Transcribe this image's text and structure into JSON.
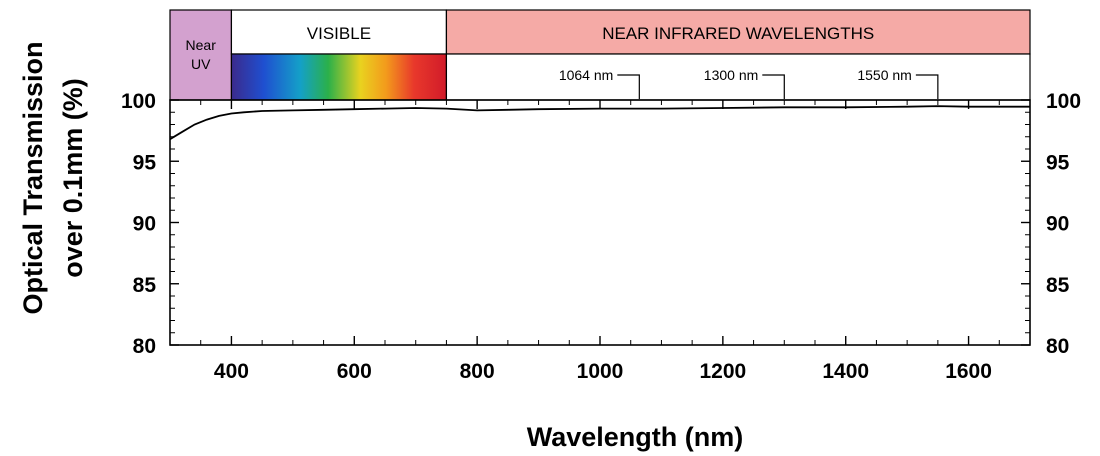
{
  "chart_data": {
    "type": "line",
    "xlabel": "Wavelength (nm)",
    "ylabel_line1": "Optical Transmission",
    "ylabel_line2": "over 0.1mm (%)",
    "xlim": [
      300,
      1700
    ],
    "ylim": [
      80,
      100
    ],
    "x_ticks": [
      400,
      600,
      800,
      1000,
      1200,
      1400,
      1600
    ],
    "y_ticks": [
      80,
      85,
      90,
      95,
      100
    ],
    "right_axis_ticks": [
      80,
      85,
      90,
      95,
      100
    ],
    "grid": false,
    "series": [
      {
        "x": [
          300,
          320,
          340,
          360,
          380,
          400,
          420,
          450,
          500,
          550,
          600,
          650,
          700,
          750,
          800,
          850,
          900,
          1000,
          1100,
          1200,
          1300,
          1400,
          1500,
          1550,
          1600,
          1700
        ],
        "y": [
          96.8,
          97.4,
          98.0,
          98.4,
          98.7,
          98.9,
          99.0,
          99.1,
          99.15,
          99.2,
          99.25,
          99.3,
          99.35,
          99.3,
          99.15,
          99.2,
          99.25,
          99.3,
          99.3,
          99.35,
          99.4,
          99.4,
          99.45,
          99.5,
          99.45,
          99.45
        ]
      }
    ],
    "bands": [
      {
        "label_line1": "Near",
        "label_line2": "UV",
        "from": 300,
        "to": 400,
        "color": "#d3a1cf"
      },
      {
        "label": "VISIBLE",
        "from": 400,
        "to": 750,
        "color": "#ffffff"
      },
      {
        "label": "NEAR INFRARED WAVELENGTHS",
        "from": 750,
        "to": 1700,
        "color": "#f5aaa6"
      }
    ],
    "markers": [
      {
        "x": 1064,
        "label": "1064 nm"
      },
      {
        "x": 1300,
        "label": "1300 nm"
      },
      {
        "x": 1550,
        "label": "1550 nm"
      }
    ],
    "colors": {
      "line": "#000000",
      "axes": "#000000"
    }
  }
}
